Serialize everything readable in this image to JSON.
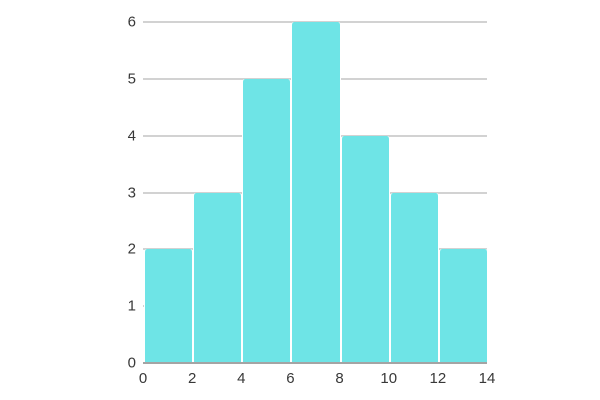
{
  "chart_data": {
    "type": "bar",
    "subtype": "histogram",
    "title": "",
    "xlabel": "",
    "ylabel": "",
    "bin_edges": [
      0,
      2,
      4,
      6,
      8,
      10,
      12,
      14
    ],
    "values": [
      2,
      3,
      5,
      6,
      4,
      3,
      2
    ],
    "x_tick_values": [
      0,
      2,
      4,
      6,
      8,
      10,
      12,
      14
    ],
    "x_tick_labels": [
      "0",
      "2",
      "4",
      "6",
      "8",
      "10",
      "12",
      "14"
    ],
    "y_tick_values": [
      0,
      1,
      2,
      3,
      4,
      5,
      6
    ],
    "y_tick_labels": [
      "0",
      "1",
      "2",
      "3",
      "4",
      "5",
      "6"
    ],
    "xlim": [
      0,
      14
    ],
    "ylim": [
      0,
      6
    ],
    "grid": "horizontal-only",
    "legend": "none",
    "colors": {
      "bar_fill": "#6EE4E6",
      "bar_separator": "#FFFFFF",
      "gridline": "#D2D2D2",
      "axis_line": "#A4A4A4",
      "tick_label_text": "#383838",
      "background": "#FFFFFF"
    }
  }
}
